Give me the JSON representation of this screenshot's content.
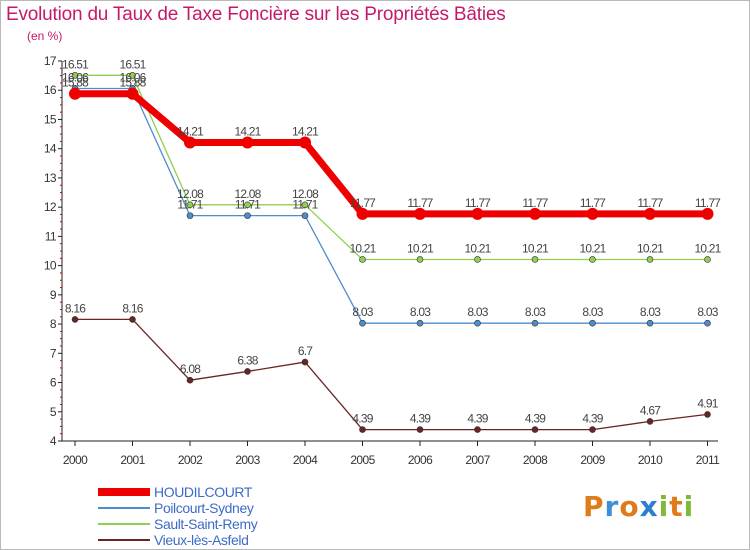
{
  "header": {
    "title": "Evolution du Taux de Taxe Foncière sur les Propriétés Bâties",
    "unit": "(en %)"
  },
  "logo": {
    "text": "Proxiti",
    "letter_colors": [
      "#e07b1a",
      "#3f8fd6",
      "#e07b1a",
      "#2c7fcf",
      "#7fb93a",
      "#e07b1a",
      "#7fb93a"
    ]
  },
  "chart_data": {
    "type": "line",
    "title": "Evolution du Taux de Taxe Foncière sur les Propriétés Bâties",
    "ylabel": "(en %)",
    "xlabel": "",
    "ylim": [
      4,
      17
    ],
    "yticks": [
      4,
      5,
      6,
      7,
      8,
      9,
      10,
      11,
      12,
      13,
      14,
      15,
      16,
      17
    ],
    "categories": [
      "2000",
      "2001",
      "2002",
      "2003",
      "2004",
      "2005",
      "2006",
      "2007",
      "2008",
      "2009",
      "2010",
      "2011"
    ],
    "grid": false,
    "legend": "bottom-left",
    "series": [
      {
        "name": "Vieux-lès-Asfeld",
        "color": "#6b2424",
        "values": [
          8.16,
          8.16,
          6.08,
          6.38,
          6.7,
          4.39,
          4.39,
          4.39,
          4.39,
          4.39,
          4.67,
          4.91
        ],
        "labels": [
          "8.16",
          "8.16",
          "6.08",
          "6.38",
          "6.7",
          "4.39",
          "4.39",
          "4.39",
          "4.39",
          "4.39",
          "4.67",
          "4.91"
        ]
      },
      {
        "name": "Sault-Saint-Remy",
        "color": "#90d050",
        "values": [
          16.51,
          16.51,
          12.08,
          12.08,
          12.08,
          10.21,
          10.21,
          10.21,
          10.21,
          10.21,
          10.21,
          10.21
        ],
        "labels": [
          "16.51",
          "16.51",
          "12.08",
          "12.08",
          "12.08",
          "10.21",
          "10.21",
          "10.21",
          "10.21",
          "10.21",
          "10.21",
          "10.21"
        ]
      },
      {
        "name": "Poilcourt-Sydney",
        "color": "#4d8dcc",
        "values": [
          16.06,
          16.06,
          11.71,
          11.71,
          11.71,
          8.03,
          8.03,
          8.03,
          8.03,
          8.03,
          8.03,
          8.03
        ],
        "labels": [
          "16.06",
          "16.06",
          "11.71",
          "11.71",
          "11.71",
          "8.03",
          "8.03",
          "8.03",
          "8.03",
          "8.03",
          "8.03",
          "8.03"
        ]
      },
      {
        "name": "HOUDILCOURT",
        "color": "#ee0000",
        "values": [
          15.88,
          15.88,
          14.21,
          14.21,
          14.21,
          11.77,
          11.77,
          11.77,
          11.77,
          11.77,
          11.77,
          11.77
        ],
        "labels": [
          "15.88",
          "15.88",
          "14.21",
          "14.21",
          "14.21",
          "11.77",
          "11.77",
          "11.77",
          "11.77",
          "11.77",
          "11.77",
          "11.77"
        ]
      }
    ],
    "legend_order": [
      "HOUDILCOURT",
      "Poilcourt-Sydney",
      "Sault-Saint-Remy",
      "Vieux-lès-Asfeld"
    ]
  }
}
